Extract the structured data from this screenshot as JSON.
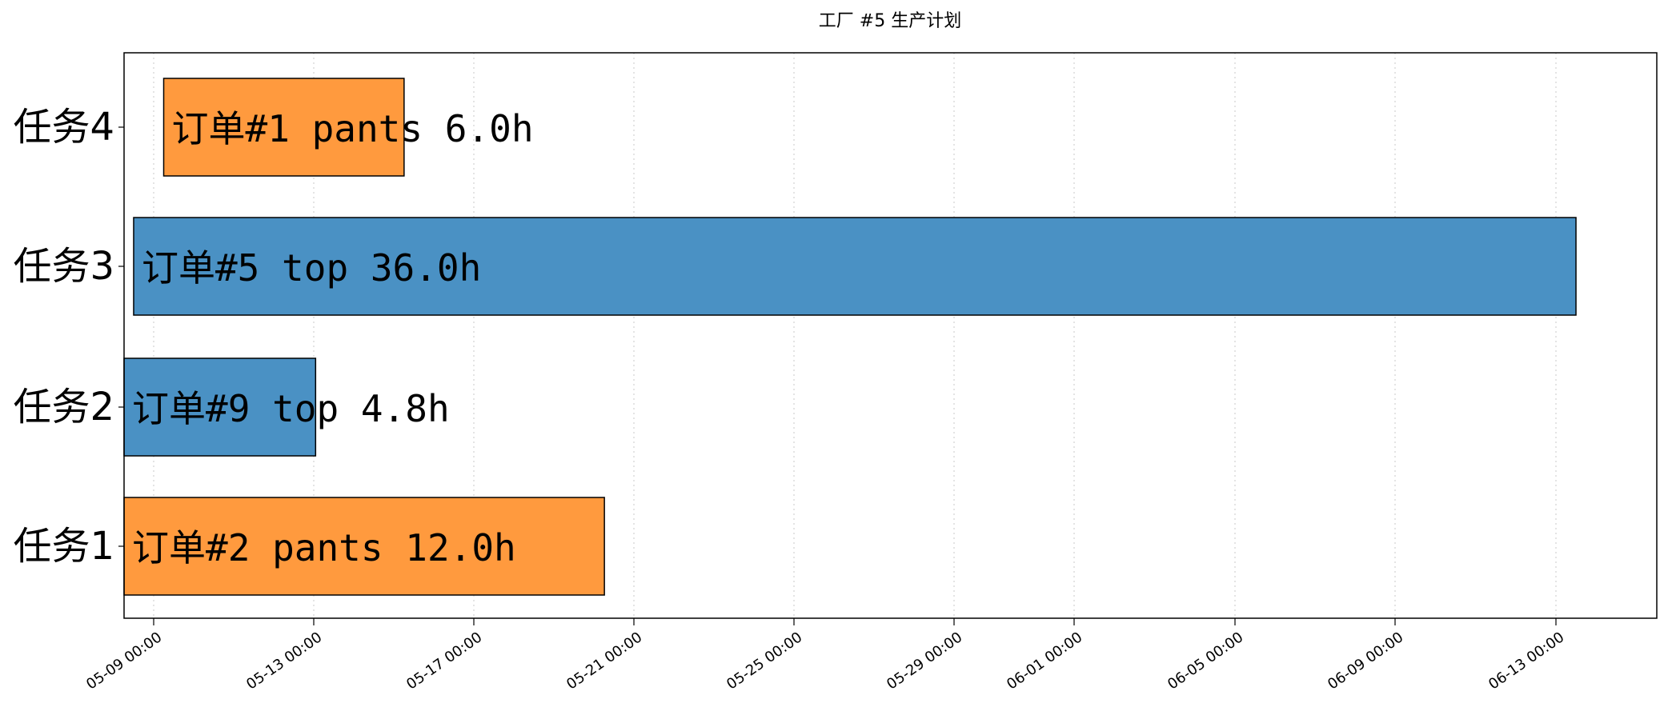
{
  "chart_data": {
    "type": "bar",
    "orientation": "horizontal-gantt",
    "title": "工厂 #5 生产计划",
    "xlabel": "",
    "ylabel": "",
    "xlim": [
      "2025-05-08 06:00",
      "2025-06-15 00:00"
    ],
    "x_ticks": [
      "05-09 00:00",
      "05-13 00:00",
      "05-17 00:00",
      "05-21 00:00",
      "05-25 00:00",
      "05-29 00:00",
      "06-01 00:00",
      "06-05 00:00",
      "06-09 00:00",
      "06-13 00:00"
    ],
    "grid": "x-dotted",
    "categories": [
      "任务1",
      "任务2",
      "任务3",
      "任务4"
    ],
    "tasks": [
      {
        "task": "任务1",
        "start": "2025-05-08 06:00",
        "end": "2025-05-20 06:00",
        "order": "订单#2",
        "product": "pants",
        "duration": "12.0h",
        "color": "#ff9a3e"
      },
      {
        "task": "任务2",
        "start": "2025-05-08 06:00",
        "end": "2025-05-13 01:00",
        "order": "订单#9",
        "product": "top",
        "duration": "4.8h",
        "color": "#4a91c4"
      },
      {
        "task": "任务3",
        "start": "2025-05-08 12:00",
        "end": "2025-06-13 12:00",
        "order": "订单#5",
        "product": "top",
        "duration": "36.0h",
        "color": "#4a91c4"
      },
      {
        "task": "任务4",
        "start": "2025-05-09 06:00",
        "end": "2025-05-15 06:00",
        "order": "订单#1",
        "product": "pants",
        "duration": "6.0h",
        "color": "#ff9a3e"
      }
    ]
  }
}
